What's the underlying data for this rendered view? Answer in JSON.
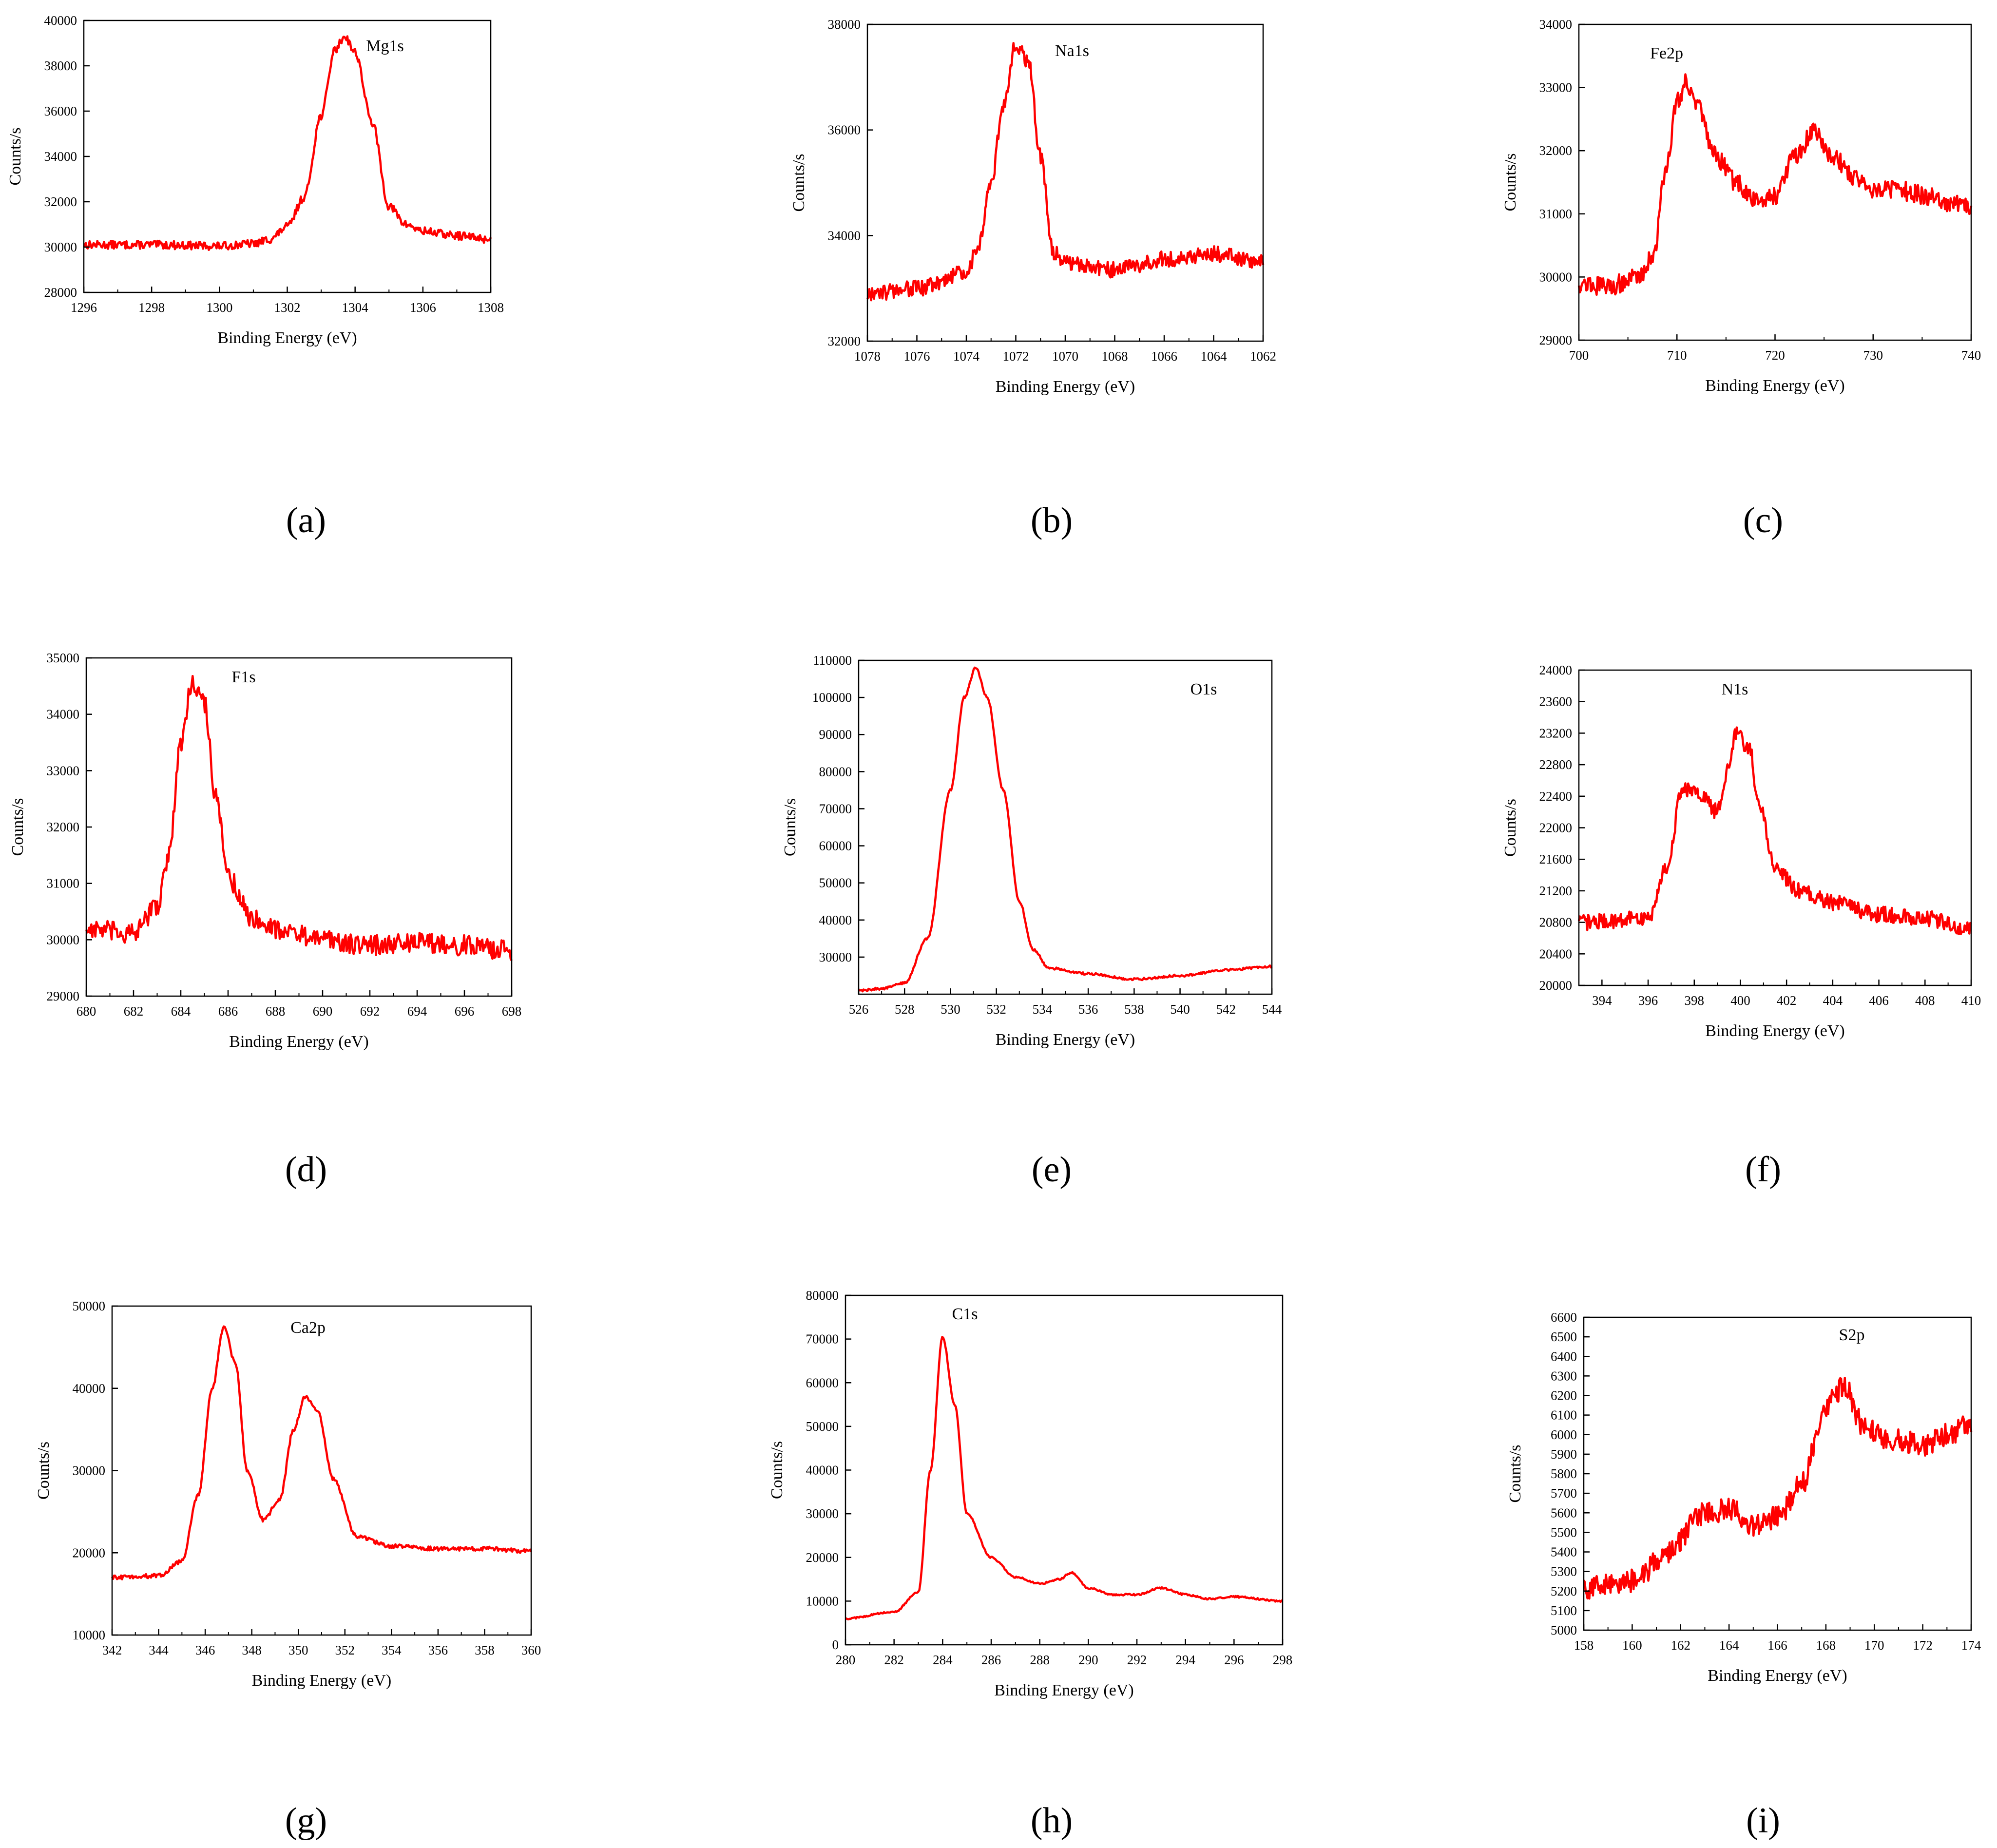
{
  "figure": {
    "x_axis_label": "Binding Energy (eV)",
    "y_axis_label": "Counts/s",
    "line_color": "#ff0000"
  },
  "chart_data": [
    {
      "panel": "a",
      "type": "line",
      "peak_label": "Mg1s",
      "xlabel": "Binding Energy (eV)",
      "ylabel": "Counts/s",
      "xlim": [
        1296,
        1308
      ],
      "ylim": [
        28000,
        40000
      ],
      "x_reversed": false,
      "xticks": [
        1296,
        1298,
        1300,
        1302,
        1304,
        1306,
        1308
      ],
      "yticks": [
        28000,
        30000,
        32000,
        34000,
        36000,
        38000,
        40000
      ],
      "noise": 180,
      "points": [
        [
          1296,
          30100
        ],
        [
          1298,
          30100
        ],
        [
          1300,
          30050
        ],
        [
          1301,
          30150
        ],
        [
          1301.5,
          30350
        ],
        [
          1302,
          30900
        ],
        [
          1302.5,
          32200
        ],
        [
          1303,
          35800
        ],
        [
          1303.4,
          38700
        ],
        [
          1303.7,
          39300
        ],
        [
          1304,
          38600
        ],
        [
          1304.5,
          35500
        ],
        [
          1305,
          31800
        ],
        [
          1305.5,
          31000
        ],
        [
          1306,
          30700
        ],
        [
          1307,
          30500
        ],
        [
          1308,
          30350
        ]
      ]
    },
    {
      "panel": "b",
      "type": "line",
      "peak_label": "Na1s",
      "xlabel": "Binding Energy (eV)",
      "ylabel": "Counts/s",
      "xlim": [
        1078,
        1062
      ],
      "ylim": [
        32000,
        38000
      ],
      "x_reversed": true,
      "xticks": [
        1078,
        1076,
        1074,
        1072,
        1070,
        1068,
        1066,
        1064,
        1062
      ],
      "yticks": [
        32000,
        34000,
        36000,
        38000
      ],
      "noise": 150,
      "points": [
        [
          1078,
          32900
        ],
        [
          1076,
          33000
        ],
        [
          1074,
          33300
        ],
        [
          1073.5,
          33800
        ],
        [
          1073,
          35000
        ],
        [
          1072.5,
          36500
        ],
        [
          1072,
          37600
        ],
        [
          1071.5,
          37300
        ],
        [
          1071,
          35500
        ],
        [
          1070.5,
          33700
        ],
        [
          1070,
          33500
        ],
        [
          1068,
          33350
        ],
        [
          1066,
          33550
        ],
        [
          1064,
          33650
        ],
        [
          1062,
          33500
        ]
      ]
    },
    {
      "panel": "c",
      "type": "line",
      "peak_label": "Fe2p",
      "xlabel": "Binding Energy (eV)",
      "ylabel": "Counts/s",
      "xlim": [
        700,
        740
      ],
      "ylim": [
        29000,
        34000
      ],
      "x_reversed": false,
      "xticks": [
        700,
        710,
        720,
        730,
        740
      ],
      "yticks": [
        29000,
        30000,
        31000,
        32000,
        33000,
        34000
      ],
      "noise": 150,
      "points": [
        [
          700,
          29900
        ],
        [
          703,
          29850
        ],
        [
          706,
          30000
        ],
        [
          707.5,
          30300
        ],
        [
          709,
          31800
        ],
        [
          710,
          32800
        ],
        [
          711,
          33100
        ],
        [
          712,
          32700
        ],
        [
          714,
          31900
        ],
        [
          716,
          31500
        ],
        [
          718,
          31200
        ],
        [
          720,
          31300
        ],
        [
          722,
          31900
        ],
        [
          724,
          32300
        ],
        [
          726,
          31900
        ],
        [
          728,
          31600
        ],
        [
          730,
          31400
        ],
        [
          732,
          31400
        ],
        [
          735,
          31300
        ],
        [
          738,
          31150
        ],
        [
          740,
          31100
        ]
      ]
    },
    {
      "panel": "d",
      "type": "line",
      "peak_label": "F1s",
      "xlabel": "Binding Energy (eV)",
      "ylabel": "Counts/s",
      "xlim": [
        680,
        698
      ],
      "ylim": [
        29000,
        35000
      ],
      "x_reversed": false,
      "xticks": [
        680,
        682,
        684,
        686,
        688,
        690,
        692,
        694,
        696,
        698
      ],
      "yticks": [
        29000,
        30000,
        31000,
        32000,
        33000,
        34000,
        35000
      ],
      "noise": 180,
      "points": [
        [
          680,
          30200
        ],
        [
          682,
          30100
        ],
        [
          683,
          30600
        ],
        [
          683.5,
          31500
        ],
        [
          684,
          33500
        ],
        [
          684.5,
          34600
        ],
        [
          685,
          34200
        ],
        [
          685.5,
          32500
        ],
        [
          686,
          31100
        ],
        [
          687,
          30400
        ],
        [
          688,
          30200
        ],
        [
          690,
          30000
        ],
        [
          692,
          29900
        ],
        [
          694,
          29950
        ],
        [
          696,
          29900
        ],
        [
          698,
          29800
        ]
      ]
    },
    {
      "panel": "e",
      "type": "line",
      "peak_label": "O1s",
      "xlabel": "Binding Energy (eV)",
      "ylabel": "Counts/s",
      "xlim": [
        526,
        544
      ],
      "ylim": [
        20000,
        110000
      ],
      "x_reversed": false,
      "xticks": [
        526,
        528,
        530,
        532,
        534,
        536,
        538,
        540,
        542,
        544
      ],
      "yticks": [
        30000,
        40000,
        50000,
        60000,
        70000,
        80000,
        90000,
        100000,
        110000
      ],
      "noise": 300,
      "points": [
        [
          526,
          21000
        ],
        [
          527,
          21500
        ],
        [
          528,
          23000
        ],
        [
          529,
          35000
        ],
        [
          530,
          75000
        ],
        [
          530.6,
          100000
        ],
        [
          531.1,
          108000
        ],
        [
          531.6,
          100000
        ],
        [
          532.3,
          75000
        ],
        [
          533,
          45000
        ],
        [
          533.6,
          32000
        ],
        [
          534.3,
          27000
        ],
        [
          536,
          25500
        ],
        [
          538,
          24000
        ],
        [
          540,
          25000
        ],
        [
          542,
          26500
        ],
        [
          544,
          27500
        ]
      ]
    },
    {
      "panel": "f",
      "type": "line",
      "peak_label": "N1s",
      "xlabel": "Binding Energy (eV)",
      "ylabel": "Counts/s",
      "xlim": [
        393,
        410
      ],
      "ylim": [
        20000,
        24000
      ],
      "x_reversed": false,
      "xticks": [
        394,
        396,
        398,
        400,
        402,
        404,
        406,
        408,
        410
      ],
      "yticks": [
        20000,
        20400,
        20800,
        21200,
        21600,
        22000,
        22400,
        22800,
        23200,
        23600,
        24000
      ],
      "noise": 100,
      "points": [
        [
          393,
          20800
        ],
        [
          396,
          20850
        ],
        [
          396.8,
          21500
        ],
        [
          397.5,
          22500
        ],
        [
          398.3,
          22400
        ],
        [
          399,
          22200
        ],
        [
          399.5,
          22800
        ],
        [
          399.8,
          23200
        ],
        [
          400.4,
          23000
        ],
        [
          400.8,
          22300
        ],
        [
          401.5,
          21500
        ],
        [
          402.5,
          21200
        ],
        [
          404,
          21050
        ],
        [
          406,
          20900
        ],
        [
          408,
          20850
        ],
        [
          410,
          20700
        ]
      ]
    },
    {
      "panel": "g",
      "type": "line",
      "peak_label": "Ca2p",
      "xlabel": "Binding Energy (eV)",
      "ylabel": "Counts/s",
      "xlim": [
        342,
        360
      ],
      "ylim": [
        10000,
        50000
      ],
      "x_reversed": false,
      "xticks": [
        342,
        344,
        346,
        348,
        350,
        352,
        354,
        356,
        358,
        360
      ],
      "yticks": [
        10000,
        20000,
        30000,
        40000,
        50000
      ],
      "noise": 250,
      "points": [
        [
          342,
          17000
        ],
        [
          344,
          17200
        ],
        [
          345,
          19000
        ],
        [
          345.7,
          27000
        ],
        [
          346.3,
          40000
        ],
        [
          346.8,
          47500
        ],
        [
          347.3,
          43000
        ],
        [
          347.8,
          30000
        ],
        [
          348.5,
          24000
        ],
        [
          349.2,
          26500
        ],
        [
          349.8,
          35000
        ],
        [
          350.3,
          39000
        ],
        [
          350.8,
          37500
        ],
        [
          351.5,
          29000
        ],
        [
          352.5,
          22000
        ],
        [
          354,
          20800
        ],
        [
          356,
          20500
        ],
        [
          358,
          20500
        ],
        [
          360,
          20200
        ]
      ]
    },
    {
      "panel": "h",
      "type": "line",
      "peak_label": "C1s",
      "xlabel": "Binding Energy (eV)",
      "ylabel": "Counts/s",
      "xlim": [
        280,
        298
      ],
      "ylim": [
        0,
        80000
      ],
      "x_reversed": false,
      "xticks": [
        280,
        282,
        284,
        286,
        288,
        290,
        292,
        294,
        296,
        298
      ],
      "yticks": [
        0,
        10000,
        20000,
        30000,
        40000,
        50000,
        60000,
        70000,
        80000
      ],
      "noise": 200,
      "points": [
        [
          280,
          6000
        ],
        [
          282,
          7500
        ],
        [
          283,
          12000
        ],
        [
          283.5,
          40000
        ],
        [
          284,
          70500
        ],
        [
          284.5,
          55000
        ],
        [
          285,
          30000
        ],
        [
          286,
          20000
        ],
        [
          287,
          15500
        ],
        [
          288,
          14000
        ],
        [
          288.8,
          15000
        ],
        [
          289.3,
          16500
        ],
        [
          290,
          13000
        ],
        [
          291,
          11500
        ],
        [
          292,
          11500
        ],
        [
          293,
          13000
        ],
        [
          294,
          11500
        ],
        [
          295,
          10500
        ],
        [
          296,
          11000
        ],
        [
          298,
          10000
        ]
      ]
    },
    {
      "panel": "i",
      "type": "line",
      "peak_label": "S2p",
      "xlabel": "Binding Energy (eV)",
      "ylabel": "Counts/s",
      "xlim": [
        158,
        174
      ],
      "ylim": [
        5000,
        6600
      ],
      "x_reversed": false,
      "xticks": [
        158,
        160,
        162,
        164,
        166,
        168,
        170,
        172,
        174
      ],
      "yticks": [
        5000,
        5100,
        5200,
        5300,
        5400,
        5500,
        5600,
        5700,
        5800,
        5900,
        6000,
        6100,
        6200,
        6300,
        6400,
        6500,
        6600
      ],
      "noise": 60,
      "points": [
        [
          158,
          5220
        ],
        [
          160,
          5250
        ],
        [
          161.5,
          5400
        ],
        [
          163,
          5600
        ],
        [
          164,
          5620
        ],
        [
          165,
          5540
        ],
        [
          166,
          5580
        ],
        [
          167,
          5750
        ],
        [
          168,
          6150
        ],
        [
          168.8,
          6250
        ],
        [
          169.5,
          6050
        ],
        [
          170.5,
          5980
        ],
        [
          172,
          5950
        ],
        [
          173,
          6000
        ],
        [
          174,
          6050
        ]
      ]
    }
  ],
  "panels": [
    {
      "letter": "(a)"
    },
    {
      "letter": "(b)"
    },
    {
      "letter": "(c)"
    },
    {
      "letter": "(d)"
    },
    {
      "letter": "(e)"
    },
    {
      "letter": "(f)"
    },
    {
      "letter": "(g)"
    },
    {
      "letter": "(h)"
    },
    {
      "letter": "(i)"
    }
  ]
}
